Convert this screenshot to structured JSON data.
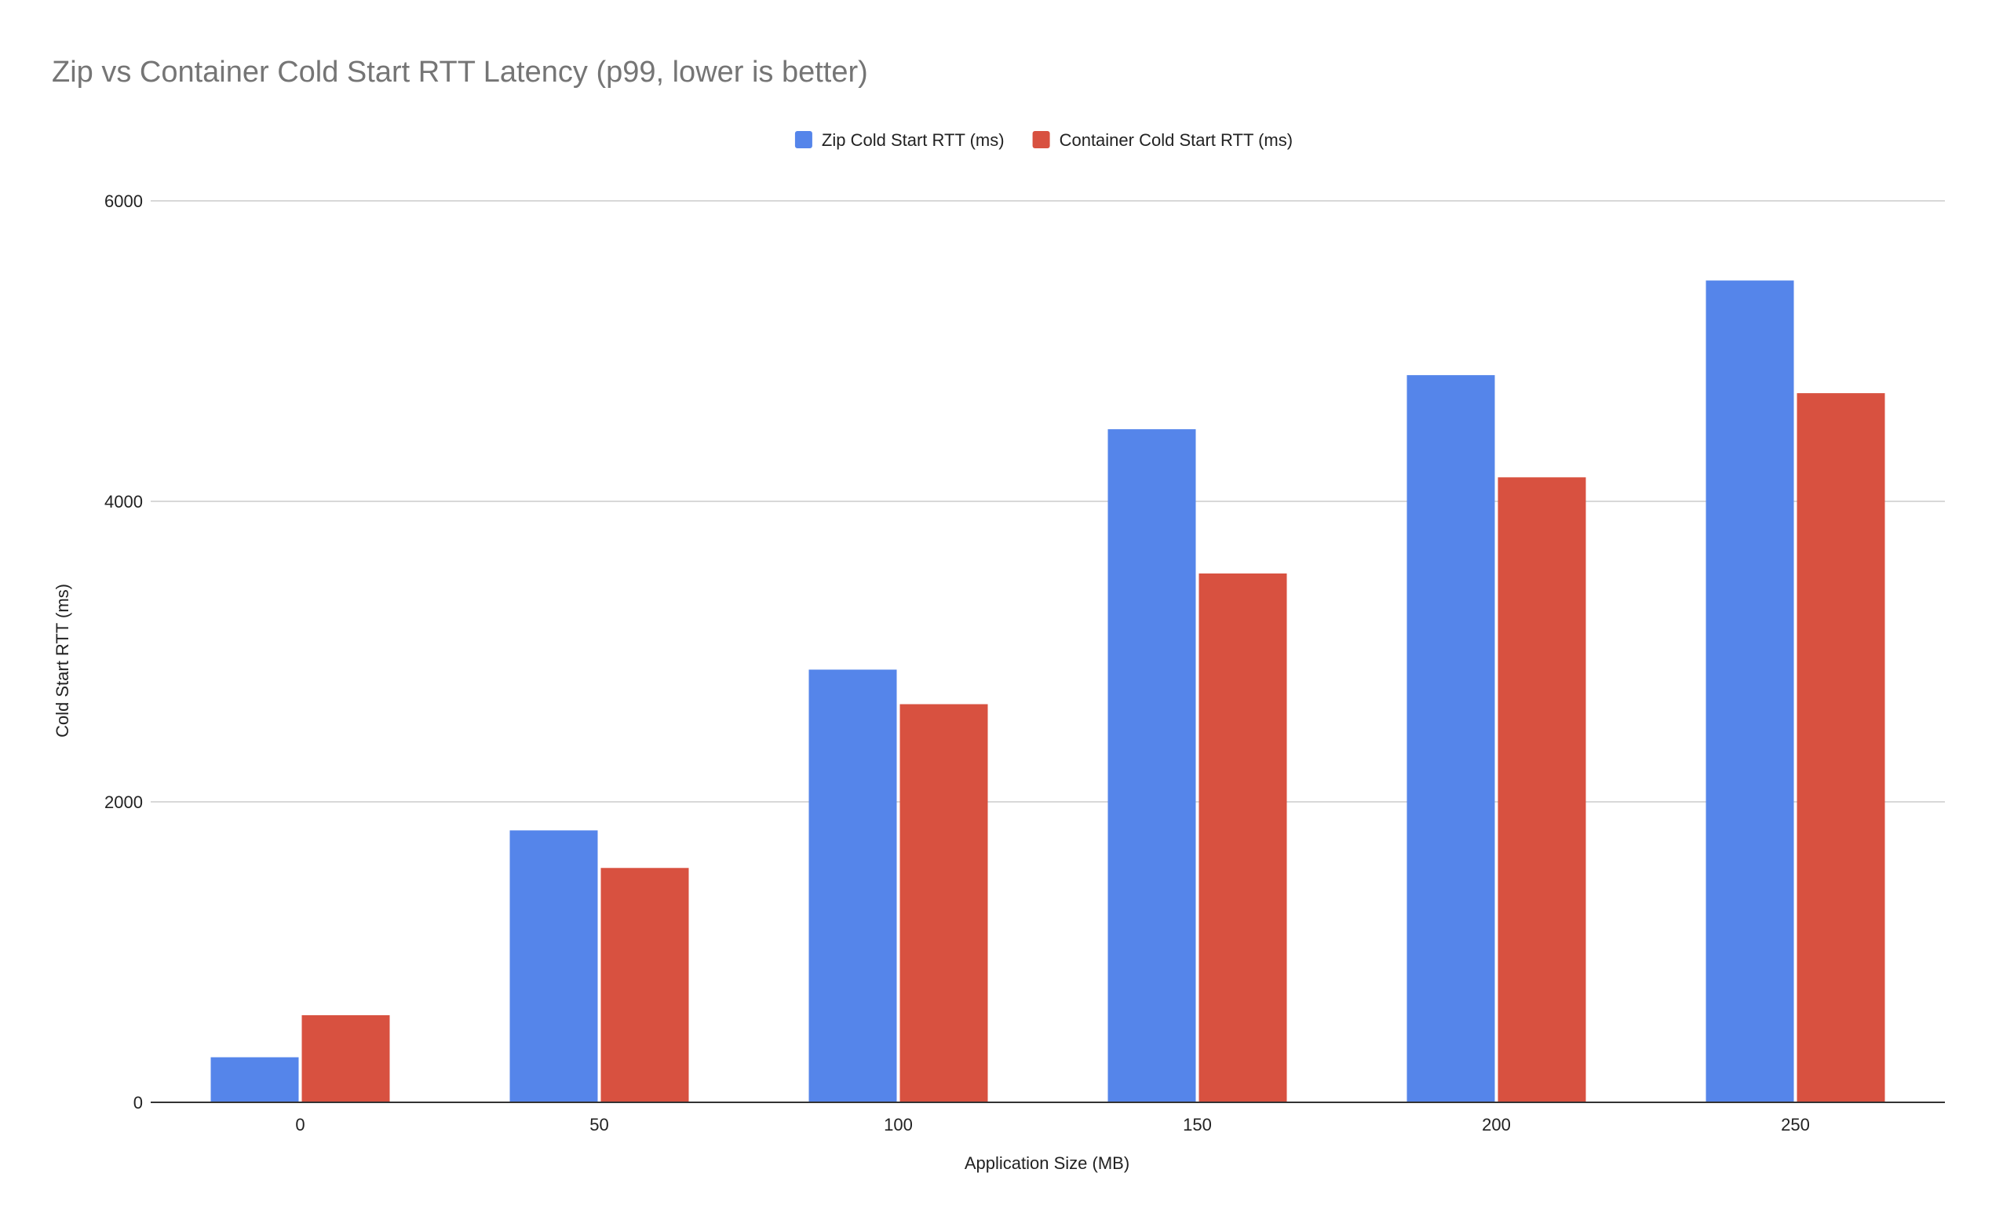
{
  "chart_data": {
    "type": "bar",
    "title": "Zip vs Container Cold Start RTT Latency (p99, lower is better)",
    "xlabel": "Application Size (MB)",
    "ylabel": "Cold Start RTT  (ms)",
    "categories": [
      "0",
      "50",
      "100",
      "150",
      "200",
      "250"
    ],
    "series": [
      {
        "name": "Zip Cold Start RTT (ms)",
        "color": "#5585ea",
        "values": [
          300,
          1810,
          2880,
          4480,
          4840,
          5470
        ]
      },
      {
        "name": "Container Cold Start RTT (ms)",
        "color": "#d85140",
        "values": [
          580,
          1560,
          2650,
          3520,
          4160,
          4720
        ]
      }
    ],
    "ylim": [
      0,
      6000
    ],
    "yticks": [
      "0",
      "2000",
      "4000",
      "6000"
    ],
    "ytick_values": [
      0,
      2000,
      4000,
      6000
    ],
    "grid": true,
    "legend_position": "top-center"
  }
}
